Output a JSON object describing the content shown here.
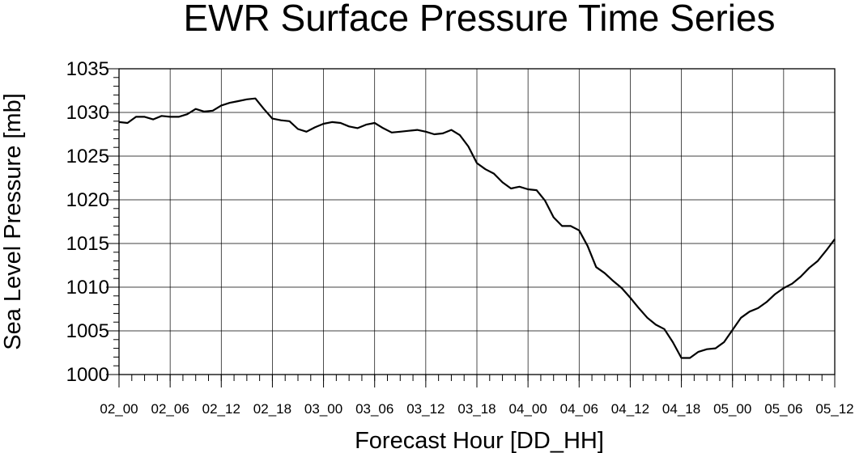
{
  "chart_data": {
    "type": "line",
    "title": "EWR Surface Pressure Time Series",
    "xlabel": "Forecast Hour [DD_HH]",
    "ylabel": "Sea Level Pressure [mb]",
    "ylim": [
      1000,
      1035
    ],
    "y_ticks": [
      1000,
      1005,
      1010,
      1015,
      1020,
      1025,
      1030,
      1035
    ],
    "y_tick_labels": [
      "1000",
      "1005",
      "1010",
      "1015",
      "1020",
      "1025",
      "1030",
      "1035"
    ],
    "xlim": [
      0,
      84
    ],
    "x_ticks": [
      0,
      6,
      12,
      18,
      24,
      30,
      36,
      42,
      48,
      54,
      60,
      66,
      72,
      78,
      84
    ],
    "x_tick_labels": [
      "02_00",
      "02_06",
      "02_12",
      "02_18",
      "03_00",
      "03_06",
      "03_12",
      "03_18",
      "04_00",
      "04_06",
      "04_12",
      "04_18",
      "05_00",
      "05_06",
      "05_12"
    ],
    "grid": true,
    "series": [
      {
        "color": "#000000",
        "x": [
          0,
          1,
          2,
          3,
          4,
          5,
          6,
          7,
          8,
          9,
          10,
          11,
          12,
          13,
          14,
          15,
          16,
          17,
          18,
          19,
          20,
          21,
          22,
          23,
          24,
          25,
          26,
          27,
          28,
          29,
          30,
          31,
          32,
          33,
          34,
          35,
          36,
          37,
          38,
          39,
          40,
          41,
          42,
          43,
          44,
          45,
          46,
          47,
          48,
          49,
          50,
          51,
          52,
          53,
          54,
          55,
          56,
          57,
          58,
          59,
          60,
          61,
          62,
          63,
          64,
          65,
          66,
          67,
          68,
          69,
          70,
          71,
          72,
          73,
          74,
          75,
          76,
          77,
          78,
          79,
          80,
          81,
          82,
          83,
          84
        ],
        "y": [
          1028.9,
          1028.8,
          1029.5,
          1029.5,
          1029.2,
          1029.6,
          1029.5,
          1029.5,
          1029.8,
          1030.4,
          1030.1,
          1030.2,
          1030.8,
          1031.1,
          1031.3,
          1031.5,
          1031.6,
          1030.4,
          1029.3,
          1029.1,
          1029.0,
          1028.1,
          1027.8,
          1028.3,
          1028.7,
          1028.9,
          1028.8,
          1028.4,
          1028.2,
          1028.6,
          1028.8,
          1028.2,
          1027.7,
          1027.8,
          1027.9,
          1028.0,
          1027.8,
          1027.5,
          1027.6,
          1028.0,
          1027.4,
          1026.1,
          1024.2,
          1023.5,
          1023.0,
          1022.0,
          1021.3,
          1021.5,
          1021.2,
          1021.1,
          1019.9,
          1018.0,
          1017.0,
          1017.0,
          1016.5,
          1014.7,
          1012.3,
          1011.6,
          1010.7,
          1009.9,
          1008.8,
          1007.6,
          1006.5,
          1005.7,
          1005.2,
          1003.7,
          1001.9,
          1001.9,
          1002.6,
          1002.9,
          1003.0,
          1003.7,
          1005.1,
          1006.5,
          1007.2,
          1007.6,
          1008.3,
          1009.2,
          1009.9,
          1010.4,
          1011.2,
          1012.2,
          1013.0,
          1014.2,
          1015.5
        ]
      }
    ]
  }
}
